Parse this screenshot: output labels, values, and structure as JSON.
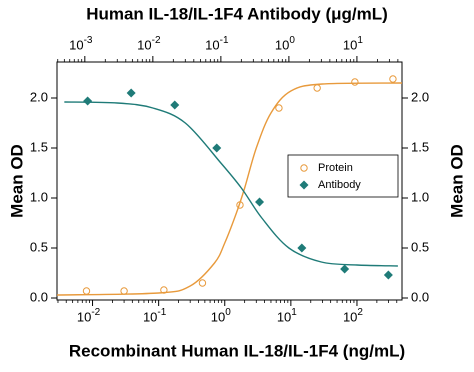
{
  "chart_data": {
    "type": "scatter",
    "title": "Human IL-18/IL-1F4 Antibody (μg/mL)",
    "x_label": "Recombinant Human IL-18/IL-1F4 (ng/mL)",
    "y_label": "Mean OD",
    "y2_label": "Mean OD",
    "log_x": true,
    "legend": "right",
    "xlim": [
      0.0029,
      480
    ],
    "x2lim": [
      0.00039,
      46
    ],
    "xticks": [
      {
        "value": 0.01,
        "label": "10",
        "exponent": "-2"
      },
      {
        "value": 0.1,
        "label": "10",
        "exponent": "-1"
      },
      {
        "value": 1,
        "label": "10",
        "exponent": "0"
      },
      {
        "value": 10,
        "label": "10",
        "exponent": "1"
      },
      {
        "value": 100,
        "label": "10",
        "exponent": "2"
      }
    ],
    "x2ticks": [
      {
        "value": 0.001,
        "label": "10",
        "exponent": "-3"
      },
      {
        "value": 0.01,
        "label": "10",
        "exponent": "-2"
      },
      {
        "value": 0.1,
        "label": "10",
        "exponent": "-1"
      },
      {
        "value": 1,
        "label": "10",
        "exponent": "0"
      },
      {
        "value": 10,
        "label": "10",
        "exponent": "1"
      }
    ],
    "ylim": [
      -0.02,
      2.36
    ],
    "yticks": [
      {
        "value": 0,
        "label": "0.0"
      },
      {
        "value": 0.5,
        "label": "0.5"
      },
      {
        "value": 1,
        "label": "1.0"
      },
      {
        "value": 1.5,
        "label": "1.5"
      },
      {
        "value": 2,
        "label": "2.0"
      }
    ],
    "y2lim": [
      -0.02,
      2.36
    ],
    "y2ticks": [
      {
        "value": 0,
        "label": "0.0"
      },
      {
        "value": 0.5,
        "label": "0.5"
      },
      {
        "value": 1,
        "label": "1.0"
      },
      {
        "value": 1.5,
        "label": "1.5"
      },
      {
        "value": 2,
        "label": "2.0"
      }
    ],
    "series": [
      {
        "name": "Protein",
        "color": "#e89a3c",
        "marker": "circle",
        "x_axis": "x",
        "x": [
          0.0081,
          0.03,
          0.12,
          0.46,
          1.7,
          6.6,
          25,
          93,
          350
        ],
        "values": [
          0.07,
          0.07,
          0.08,
          0.15,
          0.93,
          1.9,
          2.1,
          2.16,
          2.19
        ],
        "fit_x": [
          0.0029,
          0.1,
          0.3,
          0.7,
          1,
          1.5,
          2,
          3,
          5,
          10,
          30,
          480
        ],
        "fit_values": [
          0.03,
          0.05,
          0.12,
          0.35,
          0.55,
          0.85,
          1.1,
          1.5,
          1.85,
          2.07,
          2.14,
          2.15
        ]
      },
      {
        "name": "Antibody",
        "color": "#1f7b78",
        "marker": "diamond",
        "x_axis": "x2",
        "x": [
          0.0011,
          0.0048,
          0.021,
          0.087,
          0.37,
          1.55,
          6.6,
          29
        ],
        "values": [
          1.97,
          2.05,
          1.93,
          1.5,
          0.96,
          0.5,
          0.29,
          0.23
        ],
        "fit_x": [
          0.0005,
          0.003,
          0.01,
          0.03,
          0.1,
          0.2,
          0.4,
          1,
          3,
          10,
          40
        ],
        "fit_values": [
          1.96,
          1.95,
          1.9,
          1.75,
          1.35,
          1.1,
          0.8,
          0.5,
          0.36,
          0.33,
          0.32
        ]
      }
    ]
  }
}
